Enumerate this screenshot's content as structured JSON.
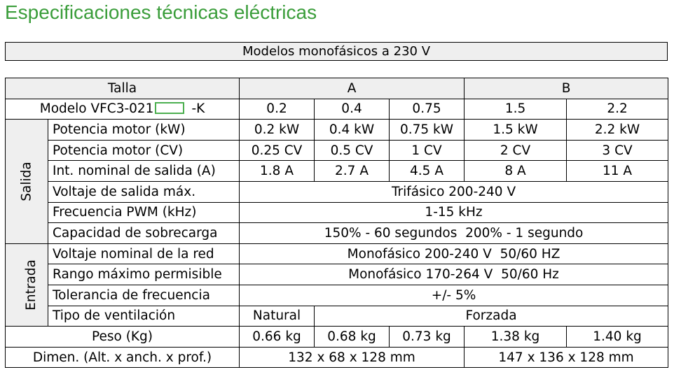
{
  "title": "Especificaciones técnicas eléctricas",
  "header": "Modelos monofásicos a 230 V",
  "talla": {
    "label": "Talla",
    "a": "A",
    "b": "B"
  },
  "modelo": {
    "prefix": "Modelo VFC3-021",
    "suffix": "-K",
    "values": [
      "0.2",
      "0.4",
      "0.75",
      "1.5",
      "2.2"
    ]
  },
  "salida": {
    "label": "Salida",
    "potencia_kw": {
      "label": "Potencia motor (kW)",
      "values": [
        "0.2 kW",
        "0.4 kW",
        "0.75 kW",
        "1.5 kW",
        "2.2 kW"
      ]
    },
    "potencia_cv": {
      "label": "Potencia motor (CV)",
      "values": [
        "0.25 CV",
        "0.5 CV",
        "1 CV",
        "2 CV",
        "3 CV"
      ]
    },
    "intensidad": {
      "label": "Int. nominal de salida (A)",
      "values": [
        "1.8 A",
        "2.7 A",
        "4.5 A",
        "8 A",
        "11 A"
      ]
    },
    "voltaje": {
      "label": "Voltaje de salida máx.",
      "value": "Trifásico 200-240 V"
    },
    "pwm": {
      "label": "Frecuencia PWM (kHz)",
      "value": "1-15 kHz"
    },
    "sobrecarga": {
      "label": "Capacidad de sobrecarga",
      "value": "150% - 60 segundos  200% - 1 segundo"
    }
  },
  "entrada": {
    "label": "Entrada",
    "voltaje_red": {
      "label": "Voltaje nominal de la red",
      "value": "Monofásico 200-240 V  50/60 HZ"
    },
    "rango": {
      "label": "Rango máximo permisible",
      "value": "Monofásico 170-264 V  50/60 Hz"
    },
    "tolerancia": {
      "label": "Tolerancia de frecuencia",
      "value": "+/- 5%"
    },
    "ventilacion": {
      "label": "Tipo de ventilación",
      "natural": "Natural",
      "forzada": "Forzada"
    }
  },
  "peso": {
    "label": "Peso (Kg)",
    "values": [
      "0.66 kg",
      "0.68 kg",
      "0.73 kg",
      "1.38 kg",
      "1.40 kg"
    ]
  },
  "dimen": {
    "label": "Dimen. (Alt. x anch. x prof.)",
    "a": "132 x 68 x 128 mm",
    "b": "147 x 136 x 128 mm"
  },
  "colors": {
    "title": "#3a9d3a",
    "model_box": "#4caf50",
    "header_bg": "#efefef"
  }
}
